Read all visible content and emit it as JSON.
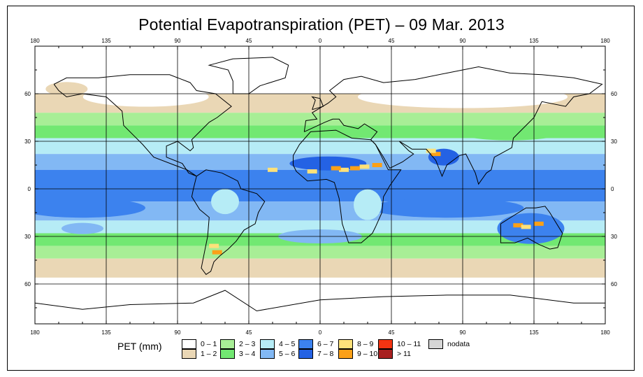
{
  "title": "Potential Evapotranspiration (PET) – 09 Mar. 2013",
  "axes": {
    "lon_labels": [
      "180",
      "135",
      "90",
      "45",
      "0",
      "45",
      "90",
      "135",
      "180"
    ],
    "lat_labels_top": [
      "60",
      "30",
      "0",
      "30",
      "60"
    ]
  },
  "legend": {
    "title": "PET (mm)",
    "items": [
      {
        "label": "0 – 1",
        "color": "#ffffff"
      },
      {
        "label": "1 – 2",
        "color": "#ead7b5"
      },
      {
        "label": "2 – 3",
        "color": "#a8ee96"
      },
      {
        "label": "3 – 4",
        "color": "#72e872"
      },
      {
        "label": "4 – 5",
        "color": "#b6ecf6"
      },
      {
        "label": "5 – 6",
        "color": "#82b8f4"
      },
      {
        "label": "6 – 7",
        "color": "#3c82ee"
      },
      {
        "label": "7 – 8",
        "color": "#2462e4"
      },
      {
        "label": "8 – 9",
        "color": "#fde17a"
      },
      {
        "label": "9 – 10",
        "color": "#fba018"
      },
      {
        "label": "10 – 11",
        "color": "#f43412"
      },
      {
        "label": "> 11",
        "color": "#a82020"
      },
      {
        "label": "nodata",
        "color": "#d6d6d6"
      }
    ]
  }
}
